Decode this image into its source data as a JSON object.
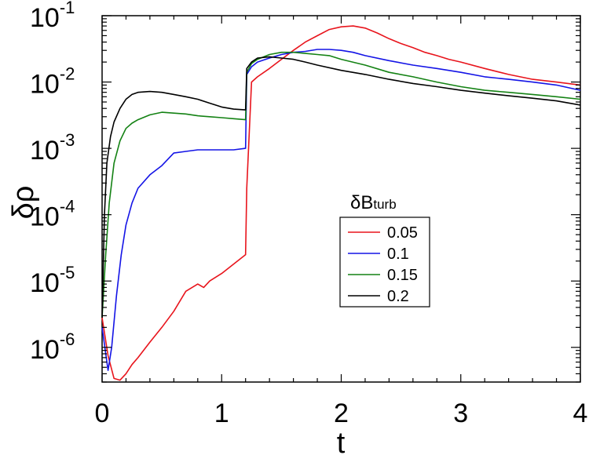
{
  "chart_data": {
    "type": "line",
    "xlabel": "t",
    "ylabel": "δρ",
    "xlim": [
      0,
      4
    ],
    "ylim": [
      3e-07,
      0.1
    ],
    "yscale": "log",
    "xticks": [
      0,
      1,
      2,
      3,
      4
    ],
    "xtick_labels": [
      "0",
      "1",
      "2",
      "3",
      "4"
    ],
    "yticks": [
      {
        "value": 1e-06,
        "base": "10",
        "exp": "-6"
      },
      {
        "value": 1e-05,
        "base": "10",
        "exp": "-5"
      },
      {
        "value": 0.0001,
        "base": "10",
        "exp": "-4"
      },
      {
        "value": 0.001,
        "base": "10",
        "exp": "-3"
      },
      {
        "value": 0.01,
        "base": "10",
        "exp": "-2"
      },
      {
        "value": 0.1,
        "base": "10",
        "exp": "-1"
      }
    ],
    "grid": false,
    "legend": {
      "title_main": "δB",
      "title_sub": "turb",
      "placement": "center-right"
    },
    "series": [
      {
        "name": "0.05",
        "color": "#e8141c",
        "x": [
          0.0,
          0.05,
          0.1,
          0.15,
          0.2,
          0.25,
          0.3,
          0.4,
          0.5,
          0.6,
          0.7,
          0.8,
          0.85,
          0.9,
          1.0,
          1.1,
          1.2,
          1.21,
          1.25,
          1.3,
          1.4,
          1.5,
          1.6,
          1.7,
          1.8,
          1.9,
          2.0,
          2.1,
          2.2,
          2.3,
          2.4,
          2.5,
          2.6,
          2.7,
          2.8,
          2.9,
          3.0,
          3.2,
          3.4,
          3.6,
          3.8,
          4.0
        ],
        "values": [
          2.8e-06,
          7.5e-07,
          3.4e-07,
          3.2e-07,
          4e-07,
          5.5e-07,
          7e-07,
          1.2e-06,
          2e-06,
          3.5e-06,
          7e-06,
          9e-06,
          8e-06,
          1e-05,
          1.3e-05,
          1.8e-05,
          2.5e-05,
          0.00025,
          0.01,
          0.012,
          0.016,
          0.022,
          0.03,
          0.04,
          0.05,
          0.062,
          0.068,
          0.07,
          0.065,
          0.055,
          0.045,
          0.038,
          0.033,
          0.028,
          0.025,
          0.022,
          0.02,
          0.016,
          0.013,
          0.011,
          0.01,
          0.009
        ]
      },
      {
        "name": "0.1",
        "color": "#1414e6",
        "x": [
          0.0,
          0.05,
          0.08,
          0.12,
          0.16,
          0.2,
          0.25,
          0.3,
          0.4,
          0.5,
          0.6,
          0.7,
          0.8,
          0.9,
          1.0,
          1.1,
          1.2,
          1.21,
          1.25,
          1.3,
          1.4,
          1.5,
          1.6,
          1.7,
          1.8,
          1.9,
          2.0,
          2.1,
          2.2,
          2.4,
          2.6,
          2.8,
          3.0,
          3.2,
          3.4,
          3.6,
          3.8,
          4.0
        ],
        "values": [
          2e-06,
          4.5e-07,
          1e-06,
          6e-06,
          2.5e-05,
          7e-05,
          0.00015,
          0.00025,
          0.0004,
          0.00055,
          0.00085,
          0.0009,
          0.00095,
          0.00095,
          0.00095,
          0.00095,
          0.001,
          0.013,
          0.017,
          0.02,
          0.023,
          0.026,
          0.028,
          0.029,
          0.031,
          0.031,
          0.03,
          0.028,
          0.025,
          0.021,
          0.018,
          0.016,
          0.014,
          0.012,
          0.011,
          0.01,
          0.009,
          0.0075
        ]
      },
      {
        "name": "0.15",
        "color": "#148214",
        "x": [
          0.0,
          0.03,
          0.06,
          0.1,
          0.15,
          0.2,
          0.25,
          0.3,
          0.4,
          0.5,
          0.6,
          0.7,
          0.8,
          0.9,
          1.0,
          1.1,
          1.2,
          1.21,
          1.25,
          1.3,
          1.4,
          1.5,
          1.6,
          1.7,
          1.8,
          1.9,
          2.0,
          2.2,
          2.4,
          2.6,
          2.8,
          3.0,
          3.2,
          3.4,
          3.6,
          3.8,
          4.0
        ],
        "values": [
          2.8e-06,
          2.5e-05,
          0.00015,
          0.0006,
          0.0013,
          0.002,
          0.0024,
          0.0027,
          0.0032,
          0.0035,
          0.0034,
          0.0033,
          0.0031,
          0.003,
          0.0029,
          0.0028,
          0.0027,
          0.014,
          0.019,
          0.022,
          0.026,
          0.028,
          0.028,
          0.027,
          0.026,
          0.025,
          0.022,
          0.018,
          0.014,
          0.012,
          0.01,
          0.0085,
          0.0075,
          0.007,
          0.0065,
          0.006,
          0.0055
        ]
      },
      {
        "name": "0.2",
        "color": "#000000",
        "x": [
          0.0,
          0.02,
          0.04,
          0.07,
          0.1,
          0.15,
          0.2,
          0.25,
          0.3,
          0.4,
          0.5,
          0.6,
          0.7,
          0.8,
          0.9,
          1.0,
          1.1,
          1.2,
          1.21,
          1.25,
          1.3,
          1.4,
          1.5,
          1.6,
          1.7,
          1.8,
          2.0,
          2.2,
          2.4,
          2.6,
          2.8,
          3.0,
          3.2,
          3.4,
          3.6,
          3.8,
          4.0
        ],
        "values": [
          2.8e-06,
          0.0001,
          0.0006,
          0.0015,
          0.0025,
          0.004,
          0.0055,
          0.0065,
          0.007,
          0.0072,
          0.007,
          0.0065,
          0.006,
          0.0055,
          0.0048,
          0.0042,
          0.0039,
          0.0038,
          0.016,
          0.02,
          0.023,
          0.024,
          0.023,
          0.022,
          0.02,
          0.018,
          0.015,
          0.013,
          0.011,
          0.0095,
          0.0085,
          0.0075,
          0.0068,
          0.0062,
          0.0057,
          0.0052,
          0.0045
        ]
      }
    ]
  }
}
